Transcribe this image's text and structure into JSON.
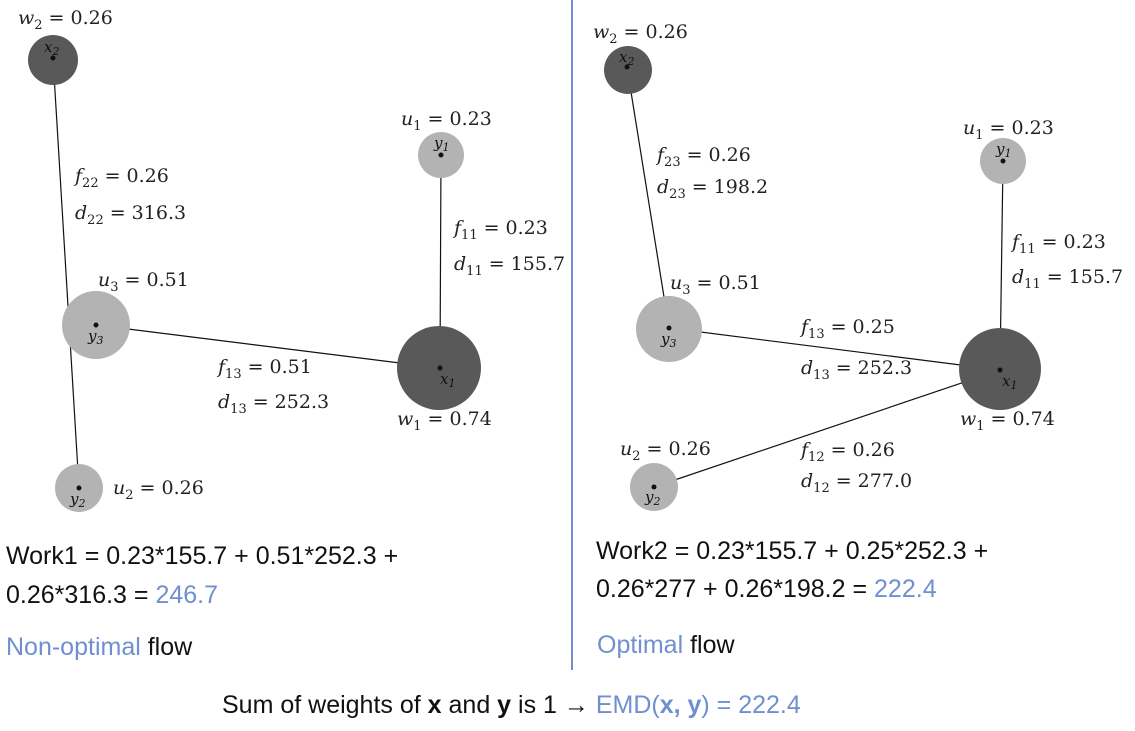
{
  "colors": {
    "accent": "#6f8fcf",
    "dark_node": "#595959",
    "light_node": "#b3b3b3",
    "divider": "#6f8fcf",
    "text": "#111111"
  },
  "left": {
    "nodes": {
      "x1": {
        "label": "x",
        "sub": "1",
        "weight_label": "w",
        "weight_sub": "1",
        "weight_value": "= 0.74"
      },
      "x2": {
        "label": "x",
        "sub": "2",
        "weight_label": "w",
        "weight_sub": "2",
        "weight_value": "= 0.26"
      },
      "y1": {
        "label": "y",
        "sub": "1",
        "weight_label": "u",
        "weight_sub": "1",
        "weight_value": "= 0.23"
      },
      "y2": {
        "label": "y",
        "sub": "2",
        "weight_label": "u",
        "weight_sub": "2",
        "weight_value": "= 0.26"
      },
      "y3": {
        "label": "y",
        "sub": "3",
        "weight_label": "u",
        "weight_sub": "3",
        "weight_value": "= 0.51"
      }
    },
    "edges": {
      "e22": {
        "f_label": "f",
        "f_sub": "22",
        "f_value": "= 0.26",
        "d_label": "d",
        "d_sub": "22",
        "d_value": "= 316.3"
      },
      "e11": {
        "f_label": "f",
        "f_sub": "11",
        "f_value": "= 0.23",
        "d_label": "d",
        "d_sub": "11",
        "d_value": "= 155.7"
      },
      "e13": {
        "f_label": "f",
        "f_sub": "13",
        "f_value": "= 0.51",
        "d_label": "d",
        "d_sub": "13",
        "d_value": "= 252.3"
      }
    },
    "work_line1": "Work1 = 0.23*155.7 + 0.51*252.3 +",
    "work_line2_prefix": "0.26*316.3 = ",
    "work_result": "246.7",
    "flow_accent": "Non-optimal",
    "flow_rest": " flow"
  },
  "right": {
    "nodes": {
      "x1": {
        "label": "x",
        "sub": "1",
        "weight_label": "w",
        "weight_sub": "1",
        "weight_value": "= 0.74"
      },
      "x2": {
        "label": "x",
        "sub": "2",
        "weight_label": "w",
        "weight_sub": "2",
        "weight_value": "= 0.26"
      },
      "y1": {
        "label": "y",
        "sub": "1",
        "weight_label": "u",
        "weight_sub": "1",
        "weight_value": "= 0.23"
      },
      "y2": {
        "label": "y",
        "sub": "2",
        "weight_label": "u",
        "weight_sub": "2",
        "weight_value": "= 0.26"
      },
      "y3": {
        "label": "y",
        "sub": "3",
        "weight_label": "u",
        "weight_sub": "3",
        "weight_value": "= 0.51"
      }
    },
    "edges": {
      "e23": {
        "f_label": "f",
        "f_sub": "23",
        "f_value": "= 0.26",
        "d_label": "d",
        "d_sub": "23",
        "d_value": "= 198.2"
      },
      "e11": {
        "f_label": "f",
        "f_sub": "11",
        "f_value": "= 0.23",
        "d_label": "d",
        "d_sub": "11",
        "d_value": "= 155.7"
      },
      "e13": {
        "f_label": "f",
        "f_sub": "13",
        "f_value": "= 0.25",
        "d_label": "d",
        "d_sub": "13",
        "d_value": "= 252.3"
      },
      "e12": {
        "f_label": "f",
        "f_sub": "12",
        "f_value": "= 0.26",
        "d_label": "d",
        "d_sub": "12",
        "d_value": "= 277.0"
      }
    },
    "work_line1": "Work2 = 0.23*155.7 + 0.25*252.3 +",
    "work_line2_prefix": "0.26*277 + 0.26*198.2 = ",
    "work_result": "222.4",
    "flow_accent": "Optimal",
    "flow_rest": " flow"
  },
  "footer": {
    "part1": "Sum of weights of ",
    "x": "x",
    "part2": " and ",
    "y": "y",
    "part3": " is 1 ",
    "arrow": "→",
    "emd_open": " EMD(",
    "emd_x": "x, y",
    "emd_close": ") = 222.4"
  }
}
